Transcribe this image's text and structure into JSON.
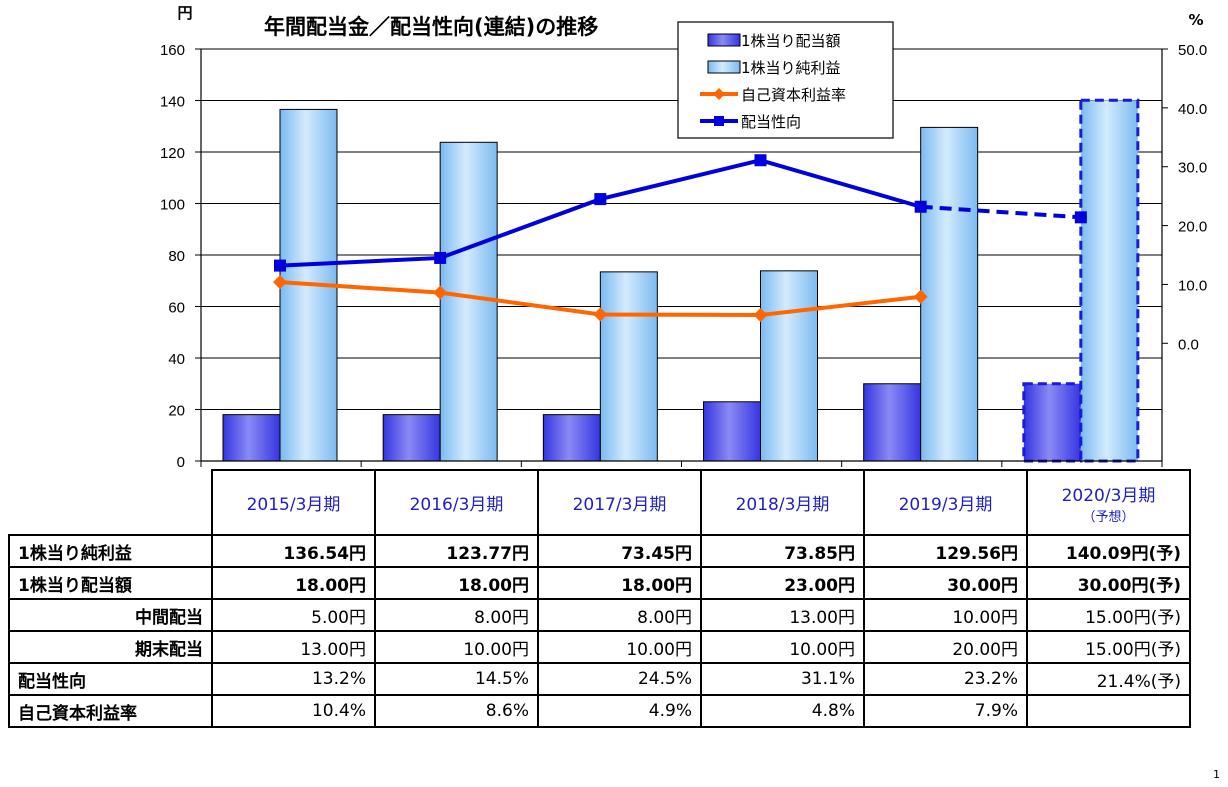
{
  "chart_data": {
    "type": "bar",
    "title": "年間配当金／配当性向(連結)の推移",
    "y_left_unit": "円",
    "y_right_unit": "%",
    "y_left_ticks": [
      "0",
      "20",
      "40",
      "60",
      "80",
      "100",
      "120",
      "140",
      "160"
    ],
    "y_right_ticks": [
      "0.0",
      "10.0",
      "20.0",
      "30.0",
      "40.0",
      "50.0"
    ],
    "ylim_left": [
      0,
      160
    ],
    "ylim_right": [
      -20,
      50
    ],
    "categories": [
      "2015/3月期",
      "2016/3月期",
      "2017/3月期",
      "2018/3月期",
      "2019/3月期",
      "2020/3月期"
    ],
    "forecast_index": 5,
    "series": [
      {
        "name": "1株当り配当額",
        "type": "bar",
        "axis": "left",
        "values": [
          18.0,
          18.0,
          18.0,
          23.0,
          30.0,
          30.0
        ]
      },
      {
        "name": "1株当り純利益",
        "type": "bar",
        "axis": "left",
        "values": [
          136.54,
          123.77,
          73.45,
          73.85,
          129.56,
          140.09
        ]
      },
      {
        "name": "自己資本利益率",
        "type": "line",
        "axis": "right",
        "values": [
          10.4,
          8.6,
          4.9,
          4.8,
          7.9,
          null
        ]
      },
      {
        "name": "配当性向",
        "type": "line",
        "axis": "right",
        "values": [
          13.2,
          14.5,
          24.5,
          31.1,
          23.2,
          21.4
        ]
      }
    ],
    "legend_position": "top-right",
    "grid": true,
    "colors": {
      "dividend_bar": "#5555ee",
      "eps_bar": "#9fd0f7",
      "roe_line": "#ff6600",
      "payout_line": "#0000dd"
    }
  },
  "table": {
    "headers": [
      {
        "main": "2015/3月期",
        "sub": ""
      },
      {
        "main": "2016/3月期",
        "sub": ""
      },
      {
        "main": "2017/3月期",
        "sub": ""
      },
      {
        "main": "2018/3月期",
        "sub": ""
      },
      {
        "main": "2019/3月期",
        "sub": ""
      },
      {
        "main": "2020/3月期",
        "sub": "（予想）"
      }
    ],
    "rows": [
      {
        "label": "1株当り純利益",
        "cells": [
          "136.54円",
          "123.77円",
          "73.45円",
          "73.85円",
          "129.56円",
          "140.09円(予)"
        ]
      },
      {
        "label": "1株当り配当額",
        "cells": [
          "18.00円",
          "18.00円",
          "18.00円",
          "23.00円",
          "30.00円",
          "30.00円(予)"
        ]
      },
      {
        "label": "中間配当",
        "cells": [
          "5.00円",
          "8.00円",
          "8.00円",
          "13.00円",
          "10.00円",
          "15.00円(予)"
        ]
      },
      {
        "label": "期末配当",
        "cells": [
          "13.00円",
          "10.00円",
          "10.00円",
          "10.00円",
          "20.00円",
          "15.00円(予)"
        ]
      },
      {
        "label": "配当性向",
        "cells": [
          "13.2%",
          "14.5%",
          "24.5%",
          "31.1%",
          "23.2%",
          "21.4%(予)"
        ]
      },
      {
        "label": "自己資本利益率",
        "cells": [
          "10.4%",
          "8.6%",
          "4.9%",
          "4.8%",
          "7.9%",
          ""
        ]
      }
    ]
  },
  "page_number": "1"
}
